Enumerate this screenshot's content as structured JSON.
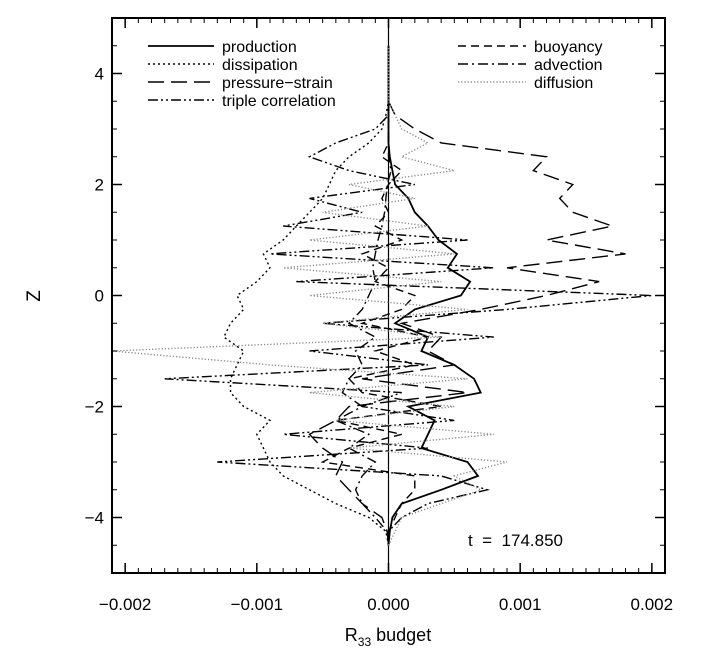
{
  "chart_data": {
    "type": "line",
    "title": "",
    "xlabel": "R",
    "xlabel_sub": "33",
    "xlabel_rest": " budget",
    "ylabel": "Z",
    "xlim": [
      -0.0021,
      0.0021
    ],
    "ylim": [
      -5,
      5
    ],
    "x_ticks": [
      -0.002,
      -0.001,
      0.0,
      0.001,
      0.002
    ],
    "x_tick_labels": [
      "−0.002",
      "−0.001",
      "0.000",
      "0.001",
      "0.002"
    ],
    "y_ticks": [
      -4,
      -2,
      0,
      2,
      4
    ],
    "y_tick_labels": [
      "−4",
      "−2",
      "0",
      "2",
      "4"
    ],
    "grid": false,
    "legend_placement": "top",
    "annotation": "t  =  174.850",
    "z": [
      -4.5,
      -4.25,
      -4.0,
      -3.75,
      -3.5,
      -3.25,
      -3.0,
      -2.75,
      -2.5,
      -2.25,
      -2.0,
      -1.75,
      -1.5,
      -1.25,
      -1.0,
      -0.75,
      -0.5,
      -0.25,
      0.0,
      0.25,
      0.5,
      0.75,
      1.0,
      1.25,
      1.5,
      1.75,
      2.0,
      2.25,
      2.5,
      2.75,
      3.0,
      3.25,
      3.5,
      3.75,
      4.0,
      4.5
    ],
    "series": [
      {
        "name": "production",
        "dash": "solid",
        "values": [
          0.0,
          1e-05,
          3e-05,
          0.0001,
          0.0004,
          0.00068,
          0.0006,
          0.00025,
          0.0003,
          0.00035,
          0.00015,
          0.0007,
          0.00065,
          0.0005,
          0.00025,
          0.0003,
          5e-05,
          0.0002,
          0.00055,
          0.00062,
          0.00045,
          0.00052,
          0.00038,
          0.0003,
          0.0002,
          0.00015,
          5e-05,
          3e-05,
          1e-05,
          0.0,
          0.0,
          0.0,
          0.0,
          0.0,
          0.0,
          0.0
        ]
      },
      {
        "name": "dissipation",
        "dash": "dotted",
        "values": [
          0.0,
          -2e-05,
          -0.00015,
          -0.0004,
          -0.0006,
          -0.0008,
          -0.0009,
          -0.00095,
          -0.001,
          -0.0009,
          -0.0011,
          -0.0012,
          -0.0012,
          -0.00115,
          -0.0011,
          -0.00125,
          -0.0012,
          -0.0011,
          -0.00115,
          -0.001,
          -0.0009,
          -0.00095,
          -0.0008,
          -0.0007,
          -0.0006,
          -0.0005,
          -0.00045,
          -0.0004,
          -0.0003,
          -0.00015,
          -5e-05,
          -2e-05,
          0.0,
          0.0,
          0.0,
          0.0
        ]
      },
      {
        "name": "pressure−strain",
        "dash": "longdash",
        "values": [
          0.0,
          -1e-05,
          -5e-05,
          -0.0002,
          -0.0003,
          -0.0004,
          -0.00035,
          -0.0005,
          -0.0006,
          -0.0004,
          -0.0003,
          0.0006,
          -0.0002,
          0.0005,
          0.0003,
          0.0004,
          0.0001,
          0.0007,
          0.0012,
          0.0016,
          0.0009,
          0.0018,
          0.0012,
          0.0017,
          0.0014,
          0.0013,
          0.0014,
          0.0011,
          0.0012,
          0.0004,
          0.0002,
          5e-05,
          0.0,
          0.0,
          0.0,
          0.0
        ]
      },
      {
        "name": "triple correlation",
        "dash": "dashdotdot",
        "values": [
          0.0,
          0.0,
          0.0001,
          0.0003,
          0.00075,
          0.0004,
          -0.0013,
          0.0003,
          -0.0008,
          0.0005,
          -0.0002,
          0.0001,
          -0.0017,
          0.0003,
          -0.0006,
          0.0008,
          -0.0005,
          0.0009,
          0.002,
          -0.0007,
          0.0008,
          -0.0009,
          0.0006,
          -0.0008,
          -0.0002,
          -0.0006,
          0.0002,
          -0.0003,
          -0.0006,
          -0.0004,
          -0.0001,
          0.0,
          0.0,
          0.0,
          0.0,
          0.0
        ]
      },
      {
        "name": "buoyancy",
        "dash": "dashed",
        "values": [
          0.0,
          0.0,
          5e-05,
          0.0001,
          0.0002,
          0.0002,
          -0.0005,
          -0.0003,
          0.0001,
          -0.0004,
          0.0004,
          -0.0002,
          -0.0003,
          0.0002,
          -0.0001,
          0.0003,
          -0.0002,
          0.0001,
          0.0002,
          -0.0001,
          0.0,
          -0.0002,
          0.0001,
          -0.0001,
          0.0,
          -5e-05,
          0.0,
          0.0001,
          -5e-05,
          0.0,
          0.0,
          0.0,
          0.0,
          0.0,
          0.0,
          0.0
        ]
      },
      {
        "name": "advection",
        "dash": "dashdot",
        "values": [
          0.0,
          -1e-05,
          -0.0001,
          -0.0002,
          -0.00025,
          -0.0002,
          -0.0001,
          -0.0003,
          -0.00015,
          -0.0004,
          -0.0002,
          -0.00035,
          -0.0003,
          -0.0002,
          -0.00025,
          -0.0001,
          -0.0003,
          -0.0002,
          -0.00015,
          -0.0001,
          -0.00012,
          -0.0001,
          -8e-05,
          -5e-05,
          -3e-05,
          -2e-05,
          -1e-05,
          2e-05,
          0.0,
          0.0,
          0.0,
          0.0,
          0.0,
          0.0,
          0.0,
          0.0
        ]
      },
      {
        "name": "diffusion",
        "dash": "finedot",
        "color": "#8a8a8a",
        "values": [
          0.0,
          5e-05,
          0.0001,
          0.0004,
          0.0007,
          0.0005,
          0.0009,
          -0.0003,
          0.0008,
          -0.0004,
          0.0005,
          -0.0006,
          0.0006,
          -0.0009,
          -0.0021,
          0.0004,
          -0.0005,
          0.0006,
          -0.0006,
          0.0004,
          -0.0008,
          0.0005,
          -0.0006,
          0.0003,
          -0.0005,
          0.0002,
          -0.0003,
          0.0005,
          0.0001,
          0.0003,
          0.0001,
          5e-05,
          0.0,
          0.0,
          0.0,
          0.0
        ]
      }
    ]
  }
}
